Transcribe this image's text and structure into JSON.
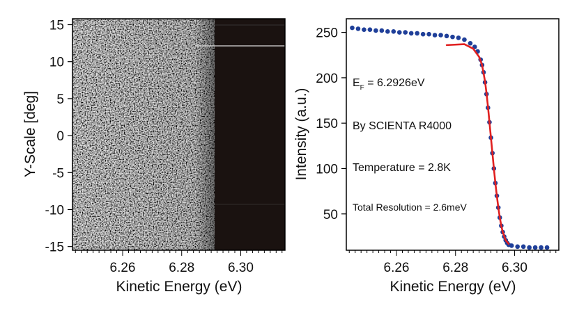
{
  "chart_data": [
    {
      "type": "heatmap",
      "xlabel": "Kinetic Energy (eV)",
      "ylabel": "Y-Scale [deg]",
      "xlim": [
        6.243,
        6.315
      ],
      "ylim": [
        -15.5,
        15.8
      ],
      "x_ticks": [
        6.26,
        6.28,
        6.3
      ],
      "x_tick_labels": [
        "6.26",
        "6.28",
        "6.30"
      ],
      "y_ticks": [
        15,
        10,
        5,
        0,
        -5,
        -10,
        -15
      ],
      "y_tick_labels": [
        "15",
        "10",
        "5",
        "0",
        "-5",
        "-10",
        "-15"
      ],
      "fermi_edge_ev": 6.2926,
      "colormap": "grayscale noise below Fermi edge, near-black above",
      "colors": {
        "dark_region": "#1a1210",
        "noise_light": "#e8e8e8",
        "noise_dark": "#707070"
      }
    },
    {
      "type": "scatter",
      "xlabel": "Kinetic Energy (eV)",
      "ylabel": "Intensity (a.u.)",
      "xlim": [
        6.243,
        6.315
      ],
      "ylim": [
        10,
        265
      ],
      "x_ticks": [
        6.26,
        6.28,
        6.3
      ],
      "x_tick_labels": [
        "6.26",
        "6.28",
        "6.30"
      ],
      "y_ticks": [
        250,
        200,
        150,
        100,
        50
      ],
      "y_tick_labels": [
        "250",
        "200",
        "150",
        "100",
        "50"
      ],
      "series": [
        {
          "kind": "points",
          "color": "#1f3f99",
          "x": [
            6.245,
            6.247,
            6.249,
            6.251,
            6.253,
            6.255,
            6.257,
            6.259,
            6.261,
            6.263,
            6.265,
            6.267,
            6.269,
            6.271,
            6.273,
            6.275,
            6.277,
            6.279,
            6.281,
            6.283,
            6.285,
            6.2865,
            6.2875,
            6.2885,
            6.289,
            6.2895,
            6.29,
            6.2905,
            6.291,
            6.2915,
            6.292,
            6.2925,
            6.293,
            6.2935,
            6.294,
            6.2945,
            6.295,
            6.2955,
            6.296,
            6.2965,
            6.297,
            6.2975,
            6.298,
            6.299,
            6.301,
            6.303,
            6.305,
            6.307,
            6.309,
            6.311
          ],
          "y": [
            255,
            254,
            253,
            253,
            252,
            252,
            251,
            251,
            250,
            250,
            249,
            249,
            248,
            248,
            247,
            247,
            246,
            245,
            244,
            242,
            238,
            234,
            229,
            220,
            214,
            206,
            195,
            182,
            167,
            151,
            134,
            117,
            100,
            84,
            70,
            57,
            46,
            37,
            30,
            25,
            21,
            18,
            16,
            15,
            14,
            14,
            13,
            13,
            13,
            13
          ]
        },
        {
          "kind": "fit",
          "color": "#e02020",
          "x": [
            6.277,
            6.283,
            6.286,
            6.288,
            6.289,
            6.29,
            6.2905,
            6.291,
            6.2915,
            6.292,
            6.2925,
            6.293,
            6.2935,
            6.294,
            6.2945,
            6.295,
            6.2955,
            6.296,
            6.297,
            6.298
          ],
          "y": [
            236,
            237,
            232,
            223,
            214,
            196,
            183,
            168,
            151,
            134,
            117,
            100,
            84,
            70,
            57,
            46,
            37,
            30,
            21,
            17
          ]
        }
      ],
      "annotations": {
        "ef_symbol": "E",
        "ef_subscript": "F",
        "ef_value": " = 6.2926eV",
        "spectrometer": "By SCIENTA R4000",
        "temperature": "Temperature = 2.8K",
        "resolution": "Total Resolution = 2.6meV"
      }
    }
  ]
}
